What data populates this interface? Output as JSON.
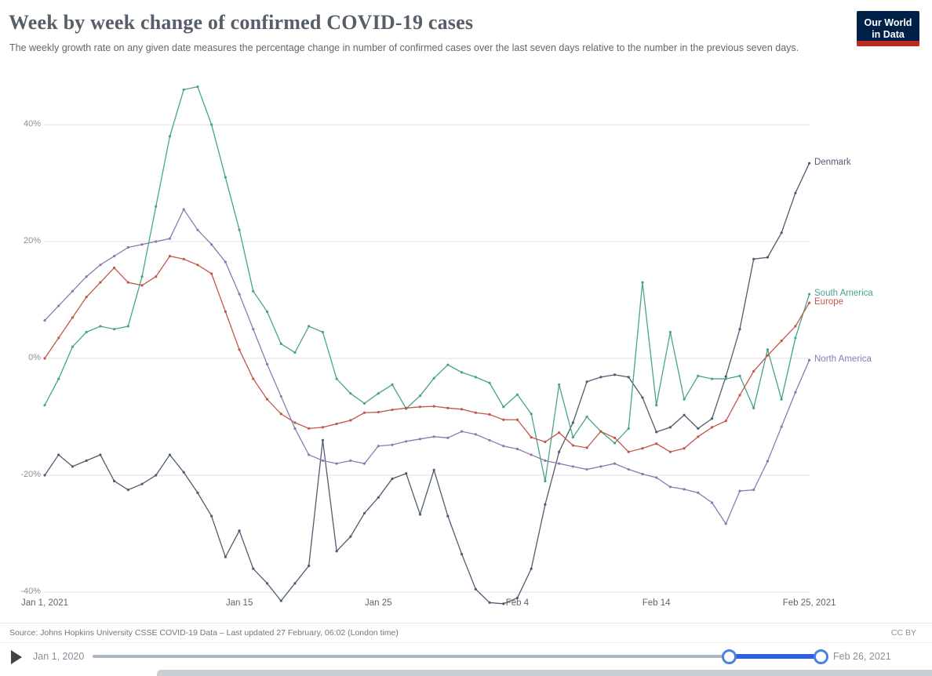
{
  "header": {
    "title": "Week by week change of confirmed COVID-19 cases",
    "subtitle": "The weekly growth rate on any given date measures the percentage change in number of confirmed cases over the last seven days relative to the number in the previous seven days.",
    "logo": {
      "line1": "Our World",
      "line2": "in Data"
    }
  },
  "chart_data": {
    "type": "line",
    "title": "Week by week change of confirmed COVID-19 cases",
    "xlabel": "",
    "ylabel": "",
    "x_unit": "days since Jan 1, 2021 (one point per day, Jan 1 – Feb 25, 2021)",
    "x_tick_positions": [
      0,
      14,
      24,
      34,
      44,
      55
    ],
    "x_tick_labels": [
      "Jan 1, 2021",
      "Jan 15",
      "Jan 25",
      "Feb 4",
      "Feb 14",
      "Feb 25, 2021"
    ],
    "y_ticks": [
      40,
      20,
      0,
      -20,
      -40
    ],
    "y_tick_labels": [
      "40%",
      "20%",
      "0%",
      "-20%",
      "-40%"
    ],
    "ylim": [
      -44,
      47
    ],
    "grid": "horizontal",
    "legend_position": "right-end-labels",
    "markers": true,
    "series": [
      {
        "name": "Denmark",
        "color": "#4e5c6f",
        "values": [
          -20,
          -16.5,
          -18.5,
          -17.5,
          -16.5,
          -21,
          -22.5,
          -21.5,
          -20,
          -16.5,
          -19.5,
          -23,
          -27,
          -34,
          -29.5,
          -36,
          -38.5,
          -41.5,
          -38.5,
          -35.5,
          -14,
          -33,
          -30.5,
          -26.5,
          -23.8,
          -20.6,
          -19.7,
          -26.7,
          -19.1,
          -27,
          -33.5,
          -39.5,
          -41.8,
          -42,
          -41,
          -36,
          -25,
          -16,
          -11,
          -4,
          -3.2,
          -2.8,
          -3.2,
          -6.7,
          -12.6,
          -11.8,
          -9.7,
          -12,
          -10.3,
          -3.1,
          5,
          17,
          17.3,
          21.5,
          28.3,
          33.4
        ]
      },
      {
        "name": "South America",
        "color": "#47a38c",
        "values": [
          -8,
          -3.5,
          2,
          4.5,
          5.5,
          5,
          5.5,
          14,
          26,
          38,
          46,
          46.5,
          40,
          31,
          22,
          11.5,
          8,
          2.5,
          1,
          5.5,
          4.5,
          -3.5,
          -6,
          -7.7,
          -6,
          -4.5,
          -8.6,
          -6.4,
          -3.4,
          -1.1,
          -2.4,
          -3.2,
          -4.2,
          -8.3,
          -6.2,
          -9.5,
          -21,
          -4.5,
          -13.5,
          -10,
          -12.5,
          -14.5,
          -12,
          13,
          -8,
          4.5,
          -7,
          -3,
          -3.5,
          -3.5,
          -3,
          -8.5,
          1.5,
          -7,
          3.5,
          11
        ]
      },
      {
        "name": "Europe",
        "color": "#c2574a",
        "values": [
          0,
          3.5,
          7,
          10.5,
          13,
          15.5,
          13,
          12.5,
          14,
          17.5,
          17,
          16,
          14.5,
          8,
          1.5,
          -3.5,
          -7,
          -9.5,
          -11,
          -12,
          -11.8,
          -11.2,
          -10.6,
          -9.3,
          -9.2,
          -8.8,
          -8.5,
          -8.3,
          -8.2,
          -8.5,
          -8.7,
          -9.3,
          -9.6,
          -10.5,
          -10.5,
          -13.5,
          -14.3,
          -12.7,
          -14.9,
          -15.3,
          -12.5,
          -13.6,
          -16,
          -15.4,
          -14.6,
          -16,
          -15.4,
          -13.4,
          -11.8,
          -10.7,
          -6.3,
          -2.2,
          0.5,
          3,
          5.5,
          9.5
        ]
      },
      {
        "name": "North America",
        "color": "#8a7ab1",
        "values": [
          6.5,
          9,
          11.5,
          14,
          16,
          17.5,
          19,
          19.5,
          20,
          20.5,
          25.5,
          22,
          19.5,
          16.5,
          11,
          5,
          -1,
          -6.5,
          -12,
          -16.5,
          -17.5,
          -18,
          -17.5,
          -18,
          -15,
          -14.8,
          -14.2,
          -13.8,
          -13.4,
          -13.6,
          -12.5,
          -13,
          -14,
          -15,
          -15.5,
          -16.5,
          -17.5,
          -18,
          -18.5,
          -19,
          -18.5,
          -18,
          -19,
          -19.8,
          -20.4,
          -22,
          -22.4,
          -23,
          -24.7,
          -28.3,
          -22.7,
          -22.5,
          -17.6,
          -11.7,
          -5.8,
          -0.3
        ]
      }
    ]
  },
  "footer": {
    "source": "Source: Johns Hopkins University CSSE COVID-19 Data – Last updated 27 February, 06:02 (London time)",
    "license": "CC BY"
  },
  "timeline": {
    "start_label": "Jan 1, 2020",
    "end_label": "Feb 26, 2021"
  }
}
